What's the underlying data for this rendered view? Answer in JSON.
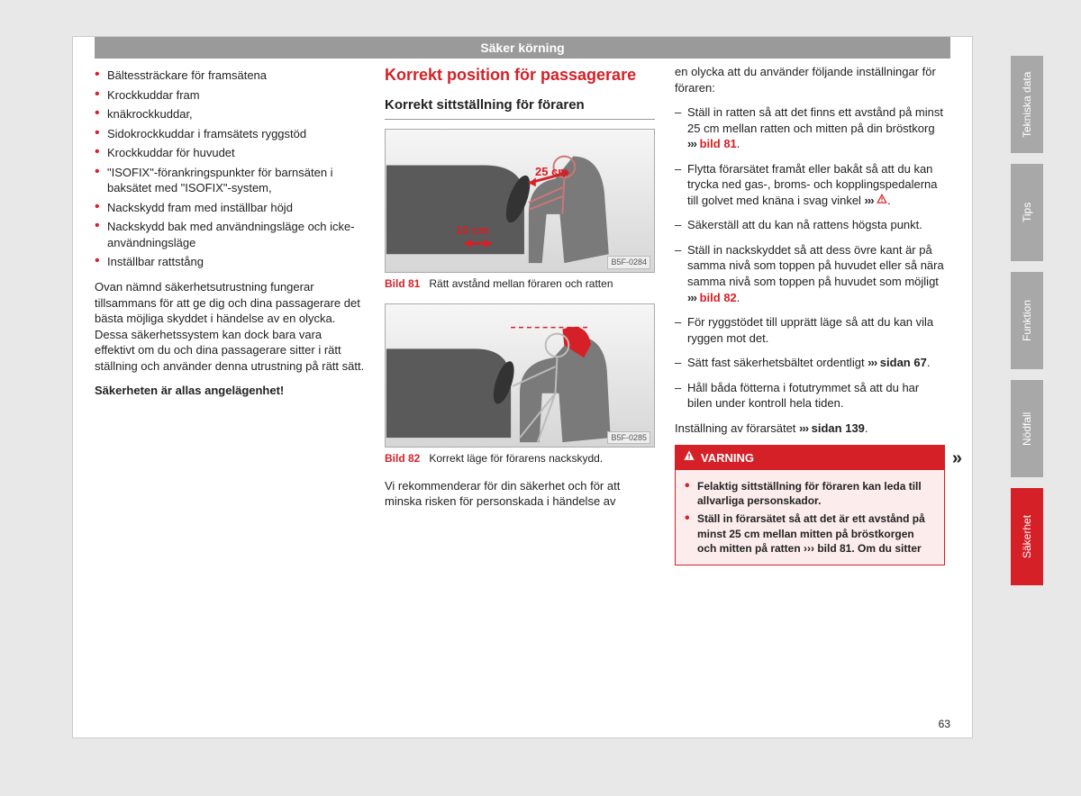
{
  "header": {
    "title": "Säker körning"
  },
  "col1": {
    "bullets": [
      "Bältessträckare för framsätena",
      "Krockkuddar fram",
      "knäkrockkuddar,",
      "Sidokrockkuddar i framsätets ryggstöd",
      "Krockkuddar för huvudet",
      "\"ISOFIX\"-förankringspunkter för barnsäten i baksätet med \"ISOFIX\"-system,",
      "Nackskydd fram med inställbar höjd",
      "Nackskydd bak med användningsläge och icke-användningsläge",
      "Inställbar rattstång"
    ],
    "paragraph": "Ovan nämnd säkerhetsutrustning fungerar tillsammans för att ge dig och dina passagerare det bästa möjliga skyddet i händelse av en olycka. Dessa säkerhetssystem kan dock bara vara effektivt om du och dina passagerare sitter i rätt ställning och använder denna utrustning på rätt sätt.",
    "bold_line": "Säkerheten är allas angelägenhet!"
  },
  "col2": {
    "title": "Korrekt position för passagerare",
    "subheading": "Korrekt sittställning för föraren",
    "fig1": {
      "label": "Bild 81",
      "caption": "Rätt avstånd mellan föraren och ratten",
      "code": "B5F-0284",
      "annot25": "25 cm",
      "annot10": "10 cm"
    },
    "fig2": {
      "label": "Bild 82",
      "caption": "Korrekt läge för förarens nackskydd.",
      "code": "B5F-0285"
    },
    "tail_para": "Vi rekommenderar för din säkerhet och för att minska risken för personskada i händelse av"
  },
  "col3": {
    "lead": "en olycka att du använder följande inställningar för föraren:",
    "items": [
      {
        "pre": "Ställ in ratten så att det finns ett avstånd på minst 25 cm mellan ratten och mitten på din bröstkorg ",
        "chev": "›››",
        "link": " bild 81",
        "link_red": true,
        "post": "."
      },
      {
        "pre": "Flytta förarsätet framåt eller bakåt så att du kan trycka ned gas-, broms- och kopplingspedalerna till golvet med knäna i svag vinkel ",
        "chev": "›››",
        "warn": true,
        "post": "."
      },
      {
        "pre": "Säkerställ att du kan nå rattens högsta punkt."
      },
      {
        "pre": "Ställ in nackskyddet så att dess övre kant är på samma nivå som toppen på huvudet eller så nära samma nivå som toppen på huvudet som möjligt ",
        "chev": "›››",
        "link": " bild 82",
        "link_red": true,
        "post": "."
      },
      {
        "pre": "För ryggstödet till upprätt läge så att du kan vila ryggen mot det."
      },
      {
        "pre": "Sätt fast säkerhetsbältet ordentligt ",
        "chev": "›››",
        "link": " sidan 67",
        "link_red": false,
        "post": "."
      },
      {
        "pre": "Håll båda fötterna i fotutrymmet så att du har bilen under kontroll hela tiden."
      }
    ],
    "setting_line_pre": "Inställning av förarsätet ",
    "setting_chev": "›››",
    "setting_link": " sidan 139",
    "setting_post": ".",
    "warning": {
      "title": "VARNING",
      "items": [
        "Felaktig sittställning för föraren kan leda till allvarliga personskador.",
        "Ställ in förarsätet så att det är ett avstånd på minst 25 cm mellan mitten på bröstkorgen och mitten på ratten ››› bild 81. Om du sitter"
      ]
    }
  },
  "page_number": "63",
  "tabs": [
    "Tekniska data",
    "Tips",
    "Funktion",
    "Nödfall",
    "Säkerhet"
  ],
  "active_tab_index": 4
}
